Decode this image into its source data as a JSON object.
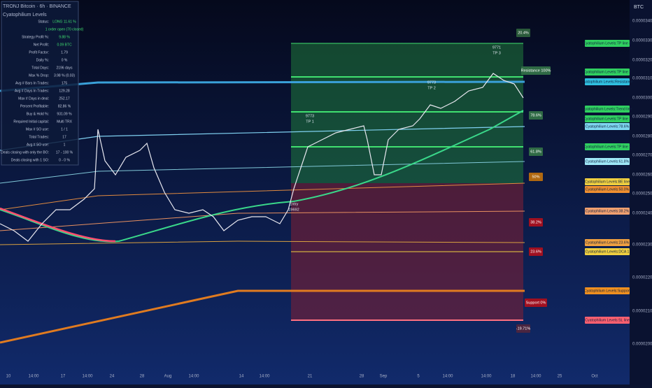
{
  "header": {
    "symbol": "TRONJ Bitcoin · 6h · BINANCE",
    "indicator": "Cyatophilium Levels",
    "currency": "BTC"
  },
  "stats": {
    "rows": [
      [
        "Status:",
        "LONG 11.61 %"
      ],
      [
        "",
        "1 order open (70 closed)"
      ],
      [
        "Strategy Profit %:",
        "9.88 %"
      ],
      [
        "Net Profit:",
        "0.09 BTC"
      ],
      [
        "Profit Factor:",
        "1.79"
      ],
      [
        "Daily %:",
        "0 %"
      ],
      [
        "Total Days:",
        "2196 days"
      ],
      [
        "Max % Drop:",
        "3.98 % (0.03)"
      ],
      [
        "Avg # Bars In Trades:",
        "175"
      ],
      [
        "Avg # Days In Trades:",
        "129.28"
      ],
      [
        "Max # Days in deal:",
        "252.17"
      ],
      [
        "Percent Profitable:",
        "82.86 %"
      ],
      [
        "Buy & Hold %:",
        "931.09 %"
      ],
      [
        "Required Initial capital:",
        "Multi TRX"
      ],
      [
        "Max # SO use:",
        "1 / 1"
      ],
      [
        "Total Trades:",
        "17"
      ],
      [
        "Avg # SO use:",
        "1"
      ],
      [
        "Deals closing with only the BO:",
        "17 - 100 %"
      ],
      [
        "Deals closing with 1 SO:",
        "0 - 0 %"
      ]
    ]
  },
  "price_axis": [
    "0.0000340",
    "0.0000330",
    "0.0000320",
    "0.0000310",
    "0.0000300",
    "0.0000290",
    "0.0000280",
    "0.0000270",
    "0.0000260",
    "0.0000250",
    "0.0000240",
    "0.0000230",
    "0.0000220",
    "0.0000210",
    "0.0000200"
  ],
  "time_axis": [
    "10",
    "14:00",
    "17",
    "14:00",
    "24",
    "28",
    "Aug",
    "14:00",
    "14",
    "14:00",
    "21",
    "28",
    "Sep",
    "5",
    "14:00",
    "14:00",
    "18",
    "14:00",
    "25",
    "Oct"
  ],
  "flags": [
    "20.4%",
    "Resistance 100%",
    "78.6%",
    "61.8%",
    "50%",
    "38.2%",
    "23.6%",
    "Support 0%",
    "-19.71%"
  ],
  "targets": [
    [
      "9771",
      "TP 3"
    ],
    [
      "9773",
      "TP 2"
    ],
    [
      "9773",
      "TP 1"
    ],
    [
      "Entry",
      "19692"
    ]
  ],
  "level_labels": [
    "Cyatophilium Levels:TP line 3",
    "Cyatophilium Levels:TP line 2",
    "Cyatophilium Levels:Resistance",
    "Cyatophilium Levels:Trend line",
    "Cyatophilium Levels:TP line 1",
    "Cyatophilium Levels:78.6%",
    "Cyatophilium Levels:TP line 1",
    "Cyatophilium Levels:61.8%",
    "Cyatophilium Levels:BE line",
    "Cyatophilium Levels:50.0%",
    "Cyatophilium Levels:38.2%",
    "Cyatophilium Levels:23.6%",
    "Cyatophilium Levels:DCA 1",
    "Cyatophilium Levels:Support",
    "Cyatophilium Levels:SL line"
  ]
}
